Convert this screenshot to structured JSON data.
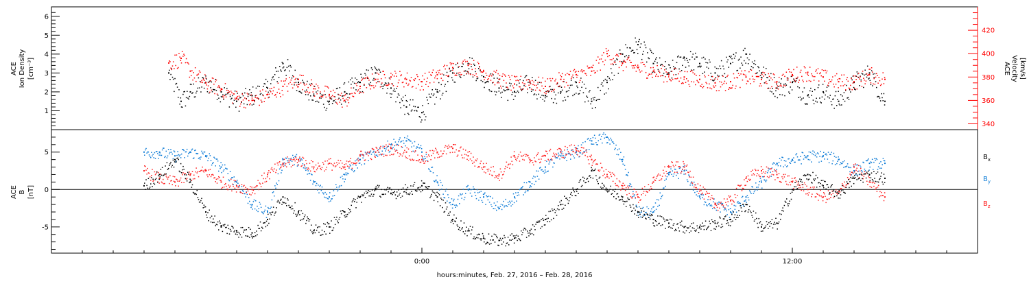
{
  "chart_data": [
    {
      "type": "scatter",
      "panel": "top",
      "ylabel_left": [
        "ACE",
        "Ion Density",
        "[cm⁻³]"
      ],
      "ylabel_right": [
        "ACE",
        "Velocity",
        "[km/s]"
      ],
      "ylim_left": [
        0,
        6.5
      ],
      "ylim_right": [
        335,
        440
      ],
      "yticks_left": [
        "1",
        "2",
        "3",
        "4",
        "5",
        "6"
      ],
      "yticks_right": [
        "340",
        "360",
        "380",
        "400",
        "420"
      ],
      "series": [
        {
          "axis": "left",
          "color": "#000000",
          "x": [
            -8.2,
            -7.8,
            -7.5,
            -7.0,
            -6.5,
            -6.0,
            -5.5,
            -5.0,
            -4.5,
            -4.0,
            -3.5,
            -3.0,
            -2.5,
            -2.0,
            -1.5,
            -1.0,
            -0.5,
            0.0,
            0.5,
            1.0,
            1.5,
            2.0,
            2.5,
            3.0,
            3.5,
            4.0,
            4.5,
            5.0,
            5.5,
            6.0,
            6.5,
            7.0,
            7.5,
            8.0,
            8.5,
            9.0,
            9.5,
            10.0,
            10.5,
            11.0,
            11.5,
            12.0,
            12.5,
            13.0,
            13.5,
            14.0,
            14.5,
            15.0
          ],
          "y": [
            3.0,
            1.5,
            2.0,
            2.5,
            2.0,
            1.5,
            1.8,
            2.2,
            3.5,
            2.5,
            1.8,
            1.5,
            2.0,
            2.5,
            3.0,
            2.2,
            1.2,
            0.9,
            2.0,
            3.0,
            3.5,
            2.8,
            2.2,
            2.0,
            2.5,
            1.8,
            2.0,
            2.5,
            1.5,
            2.5,
            4.0,
            4.5,
            3.5,
            3.0,
            3.8,
            3.5,
            3.0,
            3.5,
            4.0,
            3.0,
            2.2,
            2.5,
            1.8,
            2.0,
            1.5,
            2.5,
            3.0,
            1.5
          ]
        },
        {
          "axis": "right",
          "color": "#ff0000",
          "x": [
            -8.2,
            -7.8,
            -7.5,
            -7.0,
            -6.5,
            -6.0,
            -5.5,
            -5.0,
            -4.5,
            -4.0,
            -3.5,
            -3.0,
            -2.5,
            -2.0,
            -1.5,
            -1.0,
            -0.5,
            0.0,
            0.5,
            1.0,
            1.5,
            2.0,
            2.5,
            3.0,
            3.5,
            4.0,
            4.5,
            5.0,
            5.5,
            6.0,
            6.5,
            7.0,
            7.5,
            8.0,
            8.5,
            9.0,
            9.5,
            10.0,
            10.5,
            11.0,
            11.5,
            12.0,
            12.5,
            13.0,
            13.5,
            14.0,
            14.5,
            15.0
          ],
          "y": [
            392,
            396,
            385,
            375,
            370,
            362,
            360,
            365,
            372,
            378,
            370,
            365,
            360,
            372,
            378,
            380,
            378,
            376,
            382,
            388,
            390,
            385,
            378,
            374,
            376,
            372,
            378,
            382,
            385,
            400,
            392,
            388,
            385,
            382,
            380,
            378,
            375,
            376,
            380,
            378,
            376,
            382,
            384,
            380,
            376,
            376,
            382,
            378
          ]
        }
      ]
    },
    {
      "type": "scatter",
      "panel": "bottom",
      "ylabel_left": [
        "ACE",
        "B",
        "[nT]"
      ],
      "ylim": [
        -8.5,
        8
      ],
      "yticks": [
        "-5",
        "0",
        "5"
      ],
      "legend": [
        "Bx",
        "By",
        "Bz"
      ],
      "legend_placement": "right",
      "series": [
        {
          "name": "Bx",
          "color": "#000000",
          "x": [
            -9.0,
            -8.5,
            -8.0,
            -7.5,
            -7.0,
            -6.5,
            -6.0,
            -5.5,
            -5.0,
            -4.5,
            -4.0,
            -3.5,
            -3.0,
            -2.5,
            -2.0,
            -1.5,
            -1.0,
            -0.5,
            0.0,
            0.5,
            1.0,
            1.5,
            2.0,
            2.5,
            3.0,
            3.5,
            4.0,
            4.5,
            5.0,
            5.5,
            6.0,
            6.5,
            7.0,
            7.5,
            8.0,
            8.5,
            9.0,
            9.5,
            10.0,
            10.5,
            11.0,
            11.5,
            12.0,
            12.5,
            13.0,
            13.5,
            14.0,
            14.5,
            15.0
          ],
          "y": [
            0.5,
            2.0,
            4.0,
            1.0,
            -3.0,
            -5.0,
            -5.5,
            -5.8,
            -4.0,
            -1.0,
            -3.0,
            -5.5,
            -5.0,
            -3.0,
            -1.0,
            0.0,
            -0.5,
            0.0,
            0.5,
            -1.0,
            -4.0,
            -5.5,
            -6.5,
            -6.8,
            -6.5,
            -5.5,
            -4.0,
            -2.0,
            0.0,
            2.5,
            0.0,
            -1.0,
            -3.0,
            -4.0,
            -4.5,
            -5.0,
            -5.0,
            -4.5,
            -4.0,
            -2.0,
            -5.0,
            -4.5,
            0.0,
            2.0,
            0.5,
            -0.5,
            1.5,
            2.0,
            1.5
          ]
        },
        {
          "name": "By",
          "color": "#0a7ad6",
          "x": [
            -9.0,
            -8.5,
            -8.0,
            -7.5,
            -7.0,
            -6.5,
            -6.0,
            -5.5,
            -5.0,
            -4.5,
            -4.0,
            -3.5,
            -3.0,
            -2.5,
            -2.0,
            -1.5,
            -1.0,
            -0.5,
            0.0,
            0.5,
            1.0,
            1.5,
            2.0,
            2.5,
            3.0,
            3.5,
            4.0,
            4.5,
            5.0,
            5.5,
            6.0,
            6.5,
            7.0,
            7.5,
            8.0,
            8.5,
            9.0,
            9.5,
            10.0,
            10.5,
            11.0,
            11.5,
            12.0,
            12.5,
            13.0,
            13.5,
            14.0,
            14.5,
            15.0
          ],
          "y": [
            5.0,
            5.0,
            4.5,
            5.0,
            4.5,
            3.0,
            1.0,
            -2.0,
            -3.0,
            4.0,
            4.0,
            1.0,
            -1.0,
            2.0,
            4.0,
            5.0,
            6.0,
            6.5,
            5.0,
            1.0,
            -2.0,
            0.0,
            -1.0,
            -2.5,
            -1.0,
            1.0,
            3.0,
            4.5,
            5.0,
            6.5,
            7.0,
            4.0,
            -3.0,
            -3.0,
            2.0,
            2.5,
            -1.0,
            -2.0,
            -3.0,
            -1.0,
            1.0,
            3.5,
            4.0,
            4.5,
            4.5,
            4.0,
            2.5,
            3.5,
            3.5
          ]
        },
        {
          "name": "Bz",
          "color": "#ff2020",
          "x": [
            -9.0,
            -8.5,
            -8.0,
            -7.5,
            -7.0,
            -6.5,
            -6.0,
            -5.5,
            -5.0,
            -4.5,
            -4.0,
            -3.5,
            -3.0,
            -2.5,
            -2.0,
            -1.5,
            -1.0,
            -0.5,
            0.0,
            0.5,
            1.0,
            1.5,
            2.0,
            2.5,
            3.0,
            3.5,
            4.0,
            4.5,
            5.0,
            5.5,
            6.0,
            6.5,
            7.0,
            7.5,
            8.0,
            8.5,
            9.0,
            9.5,
            10.0,
            10.5,
            11.0,
            11.5,
            12.0,
            12.5,
            13.0,
            13.5,
            14.0,
            14.5,
            15.0
          ],
          "y": [
            2.5,
            1.5,
            1.0,
            2.0,
            2.5,
            1.0,
            0.5,
            0.0,
            2.0,
            3.5,
            4.0,
            3.0,
            3.5,
            3.0,
            4.5,
            5.0,
            5.5,
            5.0,
            4.0,
            5.0,
            5.5,
            4.5,
            3.0,
            2.0,
            4.5,
            4.0,
            4.5,
            5.0,
            5.5,
            4.0,
            2.0,
            0.5,
            -1.0,
            1.0,
            3.0,
            3.0,
            0.0,
            -2.0,
            -1.5,
            1.5,
            2.5,
            2.0,
            1.0,
            0.0,
            -1.0,
            -0.5,
            3.0,
            1.0,
            -1.0
          ]
        }
      ]
    }
  ],
  "xaxis": {
    "xlim": [
      -12,
      18
    ],
    "ticks": [
      "0:00",
      "12:00"
    ],
    "xlabel": "hours:minutes, Feb. 27, 2016 – Feb. 28, 2016"
  },
  "legend_labels": {
    "bx": {
      "main": "B",
      "sub": "x"
    },
    "by": {
      "main": "B",
      "sub": "y"
    },
    "bz": {
      "main": "B",
      "sub": "z"
    }
  },
  "colors": {
    "density": "#000000",
    "velocity": "#ff0000",
    "bx": "#000000",
    "by": "#0a7ad6",
    "bz": "#ff2020"
  }
}
